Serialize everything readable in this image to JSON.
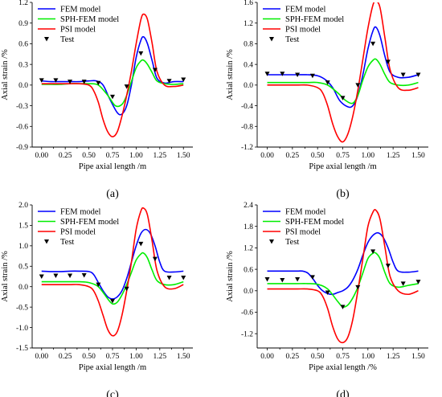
{
  "legend_labels": [
    "FEM model",
    "SPH-FEM model",
    "PSI model",
    "Test"
  ],
  "colors": {
    "fem": "#0000ff",
    "sph": "#00ee00",
    "psi": "#ff0000",
    "test": "#000000"
  },
  "chart_data": [
    {
      "type": "line",
      "panel": "(a)",
      "xlabel": "Pipe axial length /m",
      "ylabel": "Axial strain /%",
      "xlim": [
        -0.1,
        1.6
      ],
      "ylim": [
        -0.9,
        1.2
      ],
      "xticks": [
        "0.00",
        "0.25",
        "0.50",
        "0.75",
        "1.00",
        "1.25",
        "1.50"
      ],
      "yticks": [
        "-0.9",
        "-0.6",
        "-0.3",
        "0.0",
        "0.3",
        "0.6",
        "0.9",
        "1.2"
      ],
      "series": [
        {
          "name": "FEM model",
          "style": "line",
          "x": [
            0,
            0.1,
            0.2,
            0.3,
            0.4,
            0.5,
            0.58,
            0.65,
            0.72,
            0.8,
            0.85,
            0.9,
            0.95,
            1.0,
            1.05,
            1.08,
            1.12,
            1.17,
            1.22,
            1.3,
            1.4,
            1.5
          ],
          "y": [
            0.06,
            0.05,
            0.05,
            0.05,
            0.05,
            0.06,
            0.06,
            0.0,
            -0.2,
            -0.4,
            -0.42,
            -0.3,
            0.0,
            0.4,
            0.65,
            0.7,
            0.6,
            0.35,
            0.1,
            0.03,
            0.05,
            0.05
          ]
        },
        {
          "name": "SPH-FEM model",
          "style": "line",
          "x": [
            0,
            0.1,
            0.2,
            0.3,
            0.4,
            0.5,
            0.6,
            0.7,
            0.78,
            0.85,
            0.9,
            0.95,
            1.0,
            1.05,
            1.08,
            1.12,
            1.17,
            1.22,
            1.3,
            1.4,
            1.5
          ],
          "y": [
            0.01,
            0.01,
            0.01,
            0.02,
            0.02,
            0.02,
            0.0,
            -0.15,
            -0.3,
            -0.28,
            -0.15,
            0.05,
            0.25,
            0.35,
            0.36,
            0.3,
            0.18,
            0.06,
            0.02,
            0.01,
            0.02
          ]
        },
        {
          "name": "PSI model",
          "style": "line",
          "x": [
            0,
            0.1,
            0.2,
            0.3,
            0.4,
            0.5,
            0.55,
            0.6,
            0.65,
            0.7,
            0.75,
            0.8,
            0.85,
            0.9,
            0.95,
            1.0,
            1.05,
            1.08,
            1.12,
            1.17,
            1.22,
            1.3,
            1.4,
            1.5
          ],
          "y": [
            0.02,
            0.02,
            0.02,
            0.02,
            0.02,
            0.0,
            -0.08,
            -0.25,
            -0.5,
            -0.68,
            -0.75,
            -0.68,
            -0.45,
            -0.15,
            0.2,
            0.6,
            0.95,
            1.03,
            0.95,
            0.6,
            0.2,
            0.0,
            -0.02,
            0.0
          ]
        },
        {
          "name": "Test",
          "style": "marker",
          "x": [
            0,
            0.15,
            0.3,
            0.45,
            0.6,
            0.75,
            0.9,
            1.05,
            1.2,
            1.35,
            1.5
          ],
          "y": [
            0.07,
            0.07,
            0.05,
            0.05,
            0.03,
            -0.17,
            -0.02,
            0.46,
            0.22,
            0.06,
            0.08
          ]
        }
      ]
    },
    {
      "type": "line",
      "panel": "(b)",
      "xlabel": "Pipe axial length /m",
      "ylabel": "Axial strain /%",
      "xlim": [
        -0.1,
        1.6
      ],
      "ylim": [
        -1.2,
        1.6
      ],
      "xticks": [
        "0.00",
        "0.25",
        "0.50",
        "0.75",
        "1.00",
        "1.25",
        "1.50"
      ],
      "yticks": [
        "-1.2",
        "-0.8",
        "-0.4",
        "0.0",
        "0.4",
        "0.8",
        "1.2",
        "1.6"
      ],
      "series": [
        {
          "name": "FEM model",
          "style": "line",
          "x": [
            0,
            0.1,
            0.2,
            0.3,
            0.4,
            0.5,
            0.58,
            0.65,
            0.72,
            0.8,
            0.85,
            0.9,
            0.95,
            1.0,
            1.05,
            1.08,
            1.12,
            1.17,
            1.22,
            1.3,
            1.4,
            1.5
          ],
          "y": [
            0.2,
            0.2,
            0.2,
            0.2,
            0.2,
            0.18,
            0.1,
            -0.05,
            -0.3,
            -0.42,
            -0.4,
            -0.2,
            0.2,
            0.7,
            1.05,
            1.12,
            0.95,
            0.55,
            0.25,
            0.15,
            0.15,
            0.2
          ]
        },
        {
          "name": "SPH-FEM model",
          "style": "line",
          "x": [
            0,
            0.1,
            0.2,
            0.3,
            0.4,
            0.5,
            0.6,
            0.7,
            0.78,
            0.85,
            0.9,
            0.95,
            1.0,
            1.05,
            1.08,
            1.12,
            1.17,
            1.22,
            1.3,
            1.4,
            1.5
          ],
          "y": [
            0.05,
            0.05,
            0.05,
            0.05,
            0.05,
            0.05,
            0.0,
            -0.15,
            -0.3,
            -0.35,
            -0.2,
            0.1,
            0.35,
            0.48,
            0.5,
            0.4,
            0.2,
            0.05,
            0.0,
            0.0,
            0.05
          ]
        },
        {
          "name": "PSI model",
          "style": "line",
          "x": [
            0,
            0.1,
            0.2,
            0.3,
            0.4,
            0.5,
            0.55,
            0.6,
            0.65,
            0.7,
            0.75,
            0.8,
            0.85,
            0.9,
            0.95,
            1.0,
            1.05,
            1.08,
            1.12,
            1.17,
            1.22,
            1.3,
            1.4,
            1.5
          ],
          "y": [
            0.0,
            0.0,
            0.0,
            0.0,
            0.0,
            -0.05,
            -0.15,
            -0.4,
            -0.75,
            -1.0,
            -1.1,
            -0.95,
            -0.6,
            -0.1,
            0.5,
            1.1,
            1.55,
            1.62,
            1.5,
            0.9,
            0.3,
            -0.05,
            -0.1,
            -0.05
          ]
        },
        {
          "name": "Test",
          "style": "marker",
          "x": [
            0,
            0.15,
            0.3,
            0.45,
            0.6,
            0.75,
            0.9,
            1.05,
            1.2,
            1.35,
            1.5
          ],
          "y": [
            0.22,
            0.22,
            0.2,
            0.18,
            0.05,
            -0.25,
            0.0,
            0.8,
            0.45,
            0.2,
            0.2
          ]
        }
      ]
    },
    {
      "type": "line",
      "panel": "(c)",
      "xlabel": "Pipe axial length /m",
      "ylabel": "Axial strain /%",
      "xlim": [
        -0.1,
        1.6
      ],
      "ylim": [
        -1.5,
        2.0
      ],
      "xticks": [
        "0.00",
        "0.25",
        "0.50",
        "0.75",
        "1.00",
        "1.25",
        "1.50"
      ],
      "yticks": [
        "-1.5",
        "-1.0",
        "-0.5",
        "0.0",
        "0.5",
        "1.0",
        "1.5",
        "2.0"
      ],
      "series": [
        {
          "name": "FEM model",
          "style": "line",
          "x": [
            0,
            0.1,
            0.2,
            0.3,
            0.4,
            0.5,
            0.55,
            0.6,
            0.65,
            0.7,
            0.75,
            0.8,
            0.85,
            0.9,
            0.95,
            1.0,
            1.05,
            1.1,
            1.15,
            1.2,
            1.25,
            1.3,
            1.4,
            1.5
          ],
          "y": [
            0.38,
            0.37,
            0.37,
            0.38,
            0.38,
            0.37,
            0.3,
            0.1,
            -0.1,
            -0.25,
            -0.3,
            -0.25,
            -0.1,
            0.2,
            0.6,
            1.0,
            1.3,
            1.4,
            1.3,
            1.0,
            0.6,
            0.38,
            0.36,
            0.38
          ]
        },
        {
          "name": "SPH-FEM model",
          "style": "line",
          "x": [
            0,
            0.1,
            0.2,
            0.3,
            0.4,
            0.5,
            0.6,
            0.7,
            0.75,
            0.8,
            0.85,
            0.9,
            0.95,
            1.0,
            1.05,
            1.08,
            1.12,
            1.17,
            1.22,
            1.3,
            1.4,
            1.5
          ],
          "y": [
            0.12,
            0.12,
            0.12,
            0.12,
            0.12,
            0.1,
            0.0,
            -0.3,
            -0.42,
            -0.38,
            -0.2,
            0.05,
            0.35,
            0.65,
            0.8,
            0.82,
            0.7,
            0.4,
            0.15,
            0.05,
            0.05,
            0.12
          ]
        },
        {
          "name": "PSI model",
          "style": "line",
          "x": [
            0,
            0.1,
            0.2,
            0.3,
            0.4,
            0.5,
            0.55,
            0.6,
            0.65,
            0.7,
            0.75,
            0.8,
            0.85,
            0.9,
            0.95,
            1.0,
            1.05,
            1.08,
            1.12,
            1.17,
            1.22,
            1.3,
            1.4,
            1.5
          ],
          "y": [
            0.05,
            0.05,
            0.05,
            0.05,
            0.05,
            0.0,
            -0.1,
            -0.35,
            -0.7,
            -1.05,
            -1.2,
            -1.1,
            -0.7,
            -0.1,
            0.6,
            1.4,
            1.85,
            1.92,
            1.75,
            1.1,
            0.4,
            0.0,
            -0.05,
            0.05
          ]
        },
        {
          "name": "Test",
          "style": "marker",
          "x": [
            0,
            0.15,
            0.3,
            0.45,
            0.6,
            0.75,
            0.9,
            1.05,
            1.2,
            1.35,
            1.5
          ],
          "y": [
            0.25,
            0.27,
            0.27,
            0.28,
            0.05,
            -0.35,
            -0.05,
            1.05,
            0.68,
            0.22,
            0.22
          ]
        }
      ]
    },
    {
      "type": "line",
      "panel": "(d)",
      "xlabel": "Pipe axial length /%",
      "ylabel": "Axial strain /%",
      "xlim": [
        -0.1,
        1.6
      ],
      "ylim": [
        -1.6,
        2.4
      ],
      "xticks": [
        "0.00",
        "0.25",
        "0.50",
        "0.75",
        "1.00",
        "1.25",
        "1.50"
      ],
      "yticks": [
        "-1.2",
        "-0.6",
        "0.0",
        "0.6",
        "1.2",
        "1.8",
        "2.4"
      ],
      "series": [
        {
          "name": "FEM model",
          "style": "line",
          "x": [
            0,
            0.1,
            0.2,
            0.3,
            0.35,
            0.4,
            0.45,
            0.5,
            0.55,
            0.6,
            0.65,
            0.7,
            0.75,
            0.8,
            0.85,
            0.9,
            0.95,
            1.0,
            1.05,
            1.1,
            1.15,
            1.2,
            1.25,
            1.3,
            1.4,
            1.5
          ],
          "y": [
            0.55,
            0.55,
            0.55,
            0.55,
            0.55,
            0.5,
            0.35,
            0.15,
            0.0,
            -0.08,
            -0.1,
            -0.05,
            0.0,
            0.1,
            0.3,
            0.6,
            1.0,
            1.35,
            1.55,
            1.62,
            1.5,
            1.2,
            0.8,
            0.55,
            0.52,
            0.55
          ]
        },
        {
          "name": "SPH-FEM model",
          "style": "line",
          "x": [
            0,
            0.1,
            0.2,
            0.3,
            0.4,
            0.5,
            0.6,
            0.7,
            0.75,
            0.8,
            0.85,
            0.9,
            0.95,
            1.0,
            1.05,
            1.08,
            1.12,
            1.17,
            1.22,
            1.3,
            1.4,
            1.5
          ],
          "y": [
            0.2,
            0.2,
            0.2,
            0.2,
            0.2,
            0.18,
            0.05,
            -0.3,
            -0.45,
            -0.4,
            -0.2,
            0.1,
            0.5,
            0.9,
            1.05,
            1.05,
            0.9,
            0.5,
            0.2,
            0.1,
            0.15,
            0.2
          ]
        },
        {
          "name": "PSI model",
          "style": "line",
          "x": [
            0,
            0.1,
            0.2,
            0.3,
            0.4,
            0.5,
            0.55,
            0.6,
            0.65,
            0.7,
            0.75,
            0.8,
            0.85,
            0.9,
            0.95,
            1.0,
            1.05,
            1.08,
            1.12,
            1.17,
            1.22,
            1.3,
            1.4,
            1.5
          ],
          "y": [
            0.05,
            0.05,
            0.05,
            0.05,
            0.05,
            0.0,
            -0.15,
            -0.5,
            -1.0,
            -1.35,
            -1.45,
            -1.3,
            -0.8,
            0.0,
            0.9,
            1.8,
            2.2,
            2.25,
            2.0,
            1.2,
            0.4,
            0.0,
            -0.1,
            0.0
          ]
        },
        {
          "name": "Test",
          "style": "marker",
          "x": [
            0,
            0.15,
            0.3,
            0.45,
            0.6,
            0.75,
            0.9,
            1.05,
            1.2,
            1.35,
            1.5
          ],
          "y": [
            0.32,
            0.3,
            0.32,
            0.38,
            -0.05,
            -0.45,
            0.1,
            1.1,
            0.7,
            0.2,
            0.25
          ]
        }
      ]
    }
  ]
}
